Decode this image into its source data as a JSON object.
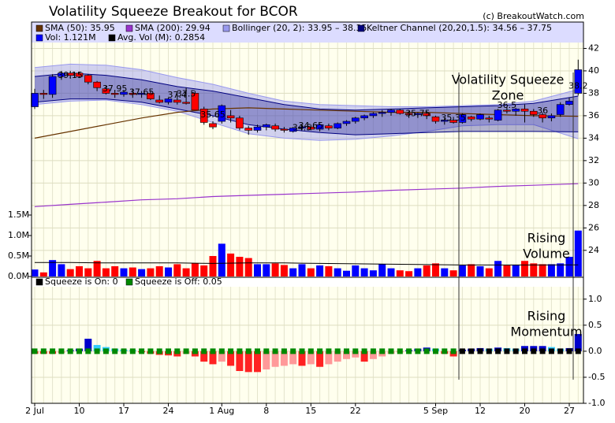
{
  "chart_data": {
    "type": "candlestick",
    "title": "Volatility Squeeze Breakout for BCOR",
    "source": "(c) BreakoutWatch.com",
    "categories": [
      "2 Jul",
      null,
      null,
      null,
      null,
      "10",
      null,
      null,
      null,
      null,
      "17",
      null,
      null,
      null,
      null,
      "24",
      null,
      null,
      null,
      null,
      null,
      "1 Aug",
      null,
      null,
      null,
      null,
      "8",
      null,
      null,
      null,
      null,
      "15",
      null,
      null,
      null,
      null,
      "22",
      null,
      null,
      null,
      null,
      null,
      null,
      null,
      null,
      "5 Sep",
      null,
      null,
      null,
      null,
      "12",
      null,
      null,
      null,
      null,
      "20",
      null,
      null,
      null,
      null,
      "27",
      null
    ],
    "open": [
      36.8,
      38.0,
      37.9,
      39.5,
      39.8,
      39.8,
      39.6,
      39.0,
      38.4,
      38.0,
      37.9,
      38.0,
      37.9,
      38.0,
      37.4,
      37.2,
      37.4,
      37.2,
      38.0,
      36.6,
      35.3,
      35.5,
      36.0,
      35.8,
      34.9,
      34.7,
      35.0,
      35.1,
      34.8,
      34.6,
      34.9,
      35.0,
      34.8,
      35.1,
      34.9,
      35.3,
      35.5,
      35.8,
      36.0,
      36.2,
      36.3,
      36.5,
      36.2,
      36.1,
      36.2,
      35.9,
      35.5,
      35.6,
      35.4,
      35.9,
      35.7,
      35.8,
      35.6,
      36.5,
      36.4,
      36.6,
      36.4,
      36.1,
      35.8,
      36.1,
      37.0,
      38.0
    ],
    "high": [
      38.4,
      38.3,
      39.7,
      40.0,
      40.0,
      39.9,
      39.7,
      39.1,
      38.7,
      38.3,
      38.3,
      38.4,
      38.2,
      38.2,
      37.8,
      37.6,
      38.0,
      38.5,
      38.2,
      36.8,
      35.5,
      37.0,
      36.5,
      36.0,
      35.1,
      35.2,
      35.3,
      35.3,
      35.0,
      35.0,
      35.1,
      35.2,
      35.3,
      35.3,
      35.4,
      35.6,
      35.9,
      36.1,
      36.3,
      36.5,
      36.6,
      36.6,
      36.4,
      36.3,
      36.4,
      36.0,
      35.8,
      35.9,
      36.2,
      36.0,
      36.2,
      36.0,
      36.6,
      36.8,
      36.7,
      37.0,
      36.6,
      36.3,
      36.2,
      37.2,
      37.6,
      41.0
    ],
    "low": [
      36.6,
      37.5,
      37.6,
      39.2,
      39.3,
      39.4,
      38.8,
      38.2,
      37.9,
      37.6,
      37.7,
      37.6,
      37.6,
      37.4,
      37.1,
      37.0,
      37.0,
      37.0,
      36.5,
      35.2,
      34.8,
      35.3,
      35.4,
      34.7,
      34.3,
      34.5,
      34.7,
      34.6,
      34.5,
      34.5,
      34.7,
      34.7,
      34.6,
      34.7,
      34.8,
      35.1,
      35.3,
      35.6,
      35.8,
      35.9,
      36.0,
      36.1,
      35.8,
      35.8,
      35.7,
      35.3,
      35.2,
      35.3,
      35.3,
      35.5,
      35.6,
      35.4,
      35.5,
      36.2,
      36.0,
      35.4,
      35.9,
      35.4,
      35.5,
      35.9,
      36.9,
      37.8
    ],
    "close": [
      38.0,
      37.9,
      39.5,
      39.8,
      39.6,
      39.5,
      39.0,
      38.5,
      38.0,
      37.9,
      38.1,
      37.9,
      38.0,
      37.5,
      37.2,
      37.5,
      37.2,
      37.1,
      36.5,
      35.4,
      35.0,
      36.9,
      35.8,
      34.9,
      34.7,
      35.0,
      35.2,
      34.8,
      34.7,
      34.9,
      35.0,
      34.8,
      35.2,
      34.9,
      35.3,
      35.5,
      35.8,
      36.0,
      36.2,
      36.3,
      36.5,
      36.2,
      36.1,
      36.2,
      36.0,
      35.5,
      35.6,
      35.4,
      36.1,
      35.7,
      36.1,
      35.7,
      36.5,
      36.4,
      36.6,
      36.4,
      36.1,
      35.8,
      36.0,
      37.0,
      37.3,
      40.1
    ],
    "up_color": "#0000ff",
    "down_color": "#ff0000",
    "ylim": [
      21.6,
      44.35
    ],
    "yticks": [
      24,
      26,
      28,
      30,
      32,
      34,
      36,
      38,
      40,
      42
    ],
    "grid": true,
    "lines": [
      {
        "name": "SMA (50): 35.95",
        "color": "#663300",
        "x": [
          0,
          4,
          8,
          12,
          16,
          20,
          24,
          28,
          32,
          36,
          40,
          44,
          48,
          52,
          56,
          61
        ],
        "values": [
          34.0,
          34.6,
          35.2,
          35.8,
          36.3,
          36.6,
          36.7,
          36.6,
          36.5,
          36.4,
          36.3,
          36.3,
          36.2,
          36.1,
          36.0,
          35.95
        ]
      },
      {
        "name": "SMA (200): 29.94",
        "color": "#9933cc",
        "x": [
          0,
          4,
          8,
          12,
          16,
          20,
          24,
          28,
          32,
          36,
          40,
          44,
          48,
          52,
          56,
          61
        ],
        "values": [
          27.9,
          28.1,
          28.3,
          28.5,
          28.6,
          28.8,
          28.9,
          29.0,
          29.1,
          29.2,
          29.35,
          29.45,
          29.55,
          29.7,
          29.8,
          29.94
        ]
      }
    ],
    "bands": [
      {
        "name": "Bollinger (20, 2): 33.95 – 38.35",
        "color": "#9999ee",
        "x": [
          0,
          4,
          8,
          12,
          16,
          20,
          24,
          28,
          32,
          36,
          40,
          44,
          48,
          52,
          56,
          61
        ],
        "upper": [
          40.3,
          40.6,
          40.5,
          40.1,
          39.4,
          38.8,
          38.0,
          37.3,
          37.0,
          36.9,
          36.8,
          36.8,
          36.9,
          37.0,
          37.3,
          38.35
        ],
        "lower": [
          37.0,
          37.3,
          37.4,
          37.0,
          36.4,
          35.4,
          34.4,
          34.0,
          33.8,
          33.9,
          34.2,
          34.6,
          35.1,
          35.2,
          35.2,
          33.95
        ]
      },
      {
        "name": "Keltner Channel (20,20,1.5): 34.56 – 37.75",
        "color": "#000080",
        "x": [
          0,
          4,
          8,
          12,
          16,
          20,
          24,
          28,
          32,
          36,
          40,
          44,
          48,
          52,
          56,
          61
        ],
        "upper": [
          39.5,
          39.8,
          39.6,
          39.2,
          38.6,
          38.2,
          37.6,
          37.0,
          36.6,
          36.5,
          36.6,
          36.7,
          36.8,
          36.9,
          37.1,
          37.75
        ],
        "lower": [
          37.2,
          37.5,
          37.5,
          37.2,
          36.6,
          36.0,
          35.2,
          34.8,
          34.5,
          34.3,
          34.4,
          34.5,
          34.6,
          34.6,
          34.6,
          34.56
        ]
      }
    ],
    "price_labels": [
      {
        "label": "39.15",
        "x": 4,
        "value": 39.15
      },
      {
        "label": "37.95",
        "x": 9,
        "value": 37.95
      },
      {
        "label": "37.65",
        "x": 12,
        "value": 37.65
      },
      {
        "label": "37.4",
        "x": 16,
        "value": 37.4
      },
      {
        "label": "37.5",
        "x": 17,
        "value": 37.5
      },
      {
        "label": "35.65",
        "x": 20,
        "value": 35.65
      },
      {
        "label": "34.5",
        "x": 30,
        "value": 34.5
      },
      {
        "label": "34.65",
        "x": 31,
        "value": 34.65
      },
      {
        "label": "35.75",
        "x": 43,
        "value": 35.75
      },
      {
        "label": "35.35",
        "x": 47,
        "value": 35.35
      },
      {
        "label": "36.5",
        "x": 53,
        "value": 36.5
      },
      {
        "label": "36",
        "x": 57,
        "value": 36
      },
      {
        "label": "38.2",
        "x": 61,
        "value": 38.2
      }
    ],
    "annotations": [
      {
        "lines": [
          "Volatility Squeeze",
          "Zone"
        ]
      },
      {
        "lines": [
          "Rising",
          "Volume"
        ]
      },
      {
        "lines": [
          "Rising",
          "Momentum"
        ]
      }
    ],
    "volume": {
      "name": "Vol: 1.121M",
      "color": "#0000ff",
      "values": [
        0.17,
        0.1,
        0.4,
        0.3,
        0.18,
        0.25,
        0.2,
        0.38,
        0.2,
        0.25,
        0.2,
        0.22,
        0.18,
        0.2,
        0.25,
        0.22,
        0.3,
        0.2,
        0.32,
        0.27,
        0.5,
        0.8,
        0.56,
        0.48,
        0.45,
        0.3,
        0.3,
        0.32,
        0.28,
        0.2,
        0.3,
        0.2,
        0.27,
        0.25,
        0.2,
        0.14,
        0.27,
        0.2,
        0.15,
        0.3,
        0.2,
        0.15,
        0.13,
        0.2,
        0.27,
        0.32,
        0.2,
        0.15,
        0.27,
        0.3,
        0.25,
        0.2,
        0.38,
        0.27,
        0.28,
        0.38,
        0.32,
        0.3,
        0.3,
        0.32,
        0.48,
        1.121
      ],
      "ylim": [
        0,
        1.5
      ],
      "yticks": [
        {
          "value": 0,
          "label": "0.0M"
        },
        {
          "value": 0.5,
          "label": "0.5M"
        },
        {
          "value": 1,
          "label": "1.0M"
        },
        {
          "value": 1.5,
          "label": "1.5M"
        }
      ],
      "average": {
        "name": "Avg. Vol (M): 0.2854",
        "color": "#000000",
        "x": [
          0,
          4,
          8,
          12,
          16,
          20,
          24,
          28,
          32,
          36,
          40,
          44,
          48,
          52,
          56,
          61
        ],
        "values": [
          0.34,
          0.34,
          0.33,
          0.33,
          0.33,
          0.32,
          0.33,
          0.33,
          0.32,
          0.31,
          0.3,
          0.29,
          0.28,
          0.28,
          0.28,
          0.2854
        ]
      }
    },
    "momentum": {
      "values": [
        -0.05,
        -0.05,
        -0.05,
        -0.03,
        0.02,
        0.05,
        0.24,
        0.12,
        0.08,
        0.05,
        0.03,
        0.02,
        -0.02,
        -0.05,
        -0.07,
        -0.08,
        -0.1,
        -0.05,
        -0.1,
        -0.2,
        -0.25,
        -0.2,
        -0.28,
        -0.38,
        -0.4,
        -0.4,
        -0.35,
        -0.3,
        -0.28,
        -0.25,
        -0.28,
        -0.25,
        -0.3,
        -0.25,
        -0.2,
        -0.15,
        -0.12,
        -0.2,
        -0.15,
        -0.1,
        -0.05,
        -0.02,
        0.02,
        0.05,
        0.07,
        0.05,
        -0.05,
        -0.1,
        0.03,
        0.05,
        0.06,
        0.05,
        0.07,
        0.06,
        0.05,
        0.1,
        0.1,
        0.1,
        0.08,
        0.05,
        0.06,
        0.33
      ],
      "colors": {
        "positive_rising": "#0000cc",
        "positive_falling": "#33ccff",
        "negative_falling": "#ff2222",
        "negative_rising": "#ff9999"
      },
      "ylim": [
        -1,
        1.42
      ],
      "yticks": [
        {
          "value": 1,
          "label": "1.0"
        },
        {
          "value": 0.5,
          "label": "0.5"
        },
        {
          "value": 0,
          "label": "0.0"
        },
        {
          "value": -0.5,
          "label": "-0.5"
        },
        {
          "value": -1,
          "label": "-1.0"
        }
      ],
      "squeeze": [
        0,
        0,
        0,
        0,
        0,
        0,
        0,
        0,
        0,
        0,
        0,
        0,
        0,
        0,
        0,
        0,
        0,
        0,
        0,
        0,
        0,
        0,
        0,
        0,
        0,
        0,
        0,
        0,
        0,
        0,
        0,
        0,
        0,
        0,
        0,
        0,
        0,
        0,
        0,
        0,
        0,
        0,
        0,
        0,
        0,
        0,
        0,
        0,
        1,
        1,
        1,
        1,
        1,
        1,
        1,
        1,
        1,
        1,
        1,
        1,
        1,
        1
      ],
      "squeeze_on": {
        "name": "Squeeze is On: 0",
        "color": "#000000"
      },
      "squeeze_off": {
        "name": "Squeeze is Off: 0.05",
        "color": "#008800"
      }
    }
  }
}
